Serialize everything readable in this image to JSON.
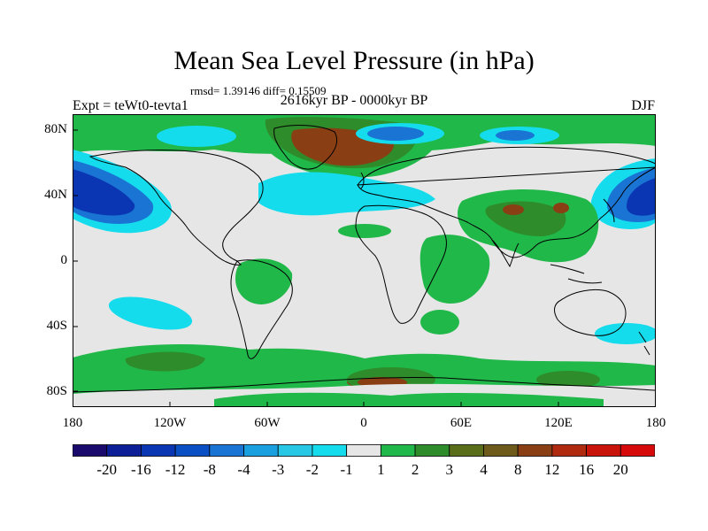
{
  "figure": {
    "title": "Mean Sea Level Pressure (in hPa)",
    "stats_line": "rmsd= 1.39146 diff= 0.15509",
    "experiment": "Expt = teWt0-tevta1",
    "period": "2616kyr BP - 0000kyr BP",
    "season": "DJF"
  },
  "axes": {
    "y_labels": [
      "80N",
      "40N",
      "0",
      "40S",
      "80S"
    ],
    "x_labels": [
      "180",
      "120W",
      "60W",
      "0",
      "60E",
      "120E",
      "180"
    ]
  },
  "colorbar": {
    "labels": [
      "-20",
      "-16",
      "-12",
      "-8",
      "-4",
      "-3",
      "-2",
      "-1",
      "1",
      "2",
      "3",
      "4",
      "8",
      "12",
      "16",
      "20"
    ],
    "colors": [
      "#1a0a6b",
      "#0d1f96",
      "#0a36b3",
      "#0a4fc4",
      "#1a74d4",
      "#1aa0de",
      "#26c8e6",
      "#14dcec",
      "#e6e6e6",
      "#21b84a",
      "#2e8c2a",
      "#5a6e1a",
      "#6e5a1a",
      "#8a3e14",
      "#b02a10",
      "#c8140a",
      "#d60a0a"
    ]
  },
  "palette": {
    "neutral": "#e6e6e6",
    "low_strong": "#0a36b3",
    "low_mid": "#1a74d4",
    "low_weak": "#14dcec",
    "high_weak": "#21b84a",
    "high_mid": "#2e8c2a",
    "high_strong": "#8a3e14",
    "coast": "#000000"
  }
}
